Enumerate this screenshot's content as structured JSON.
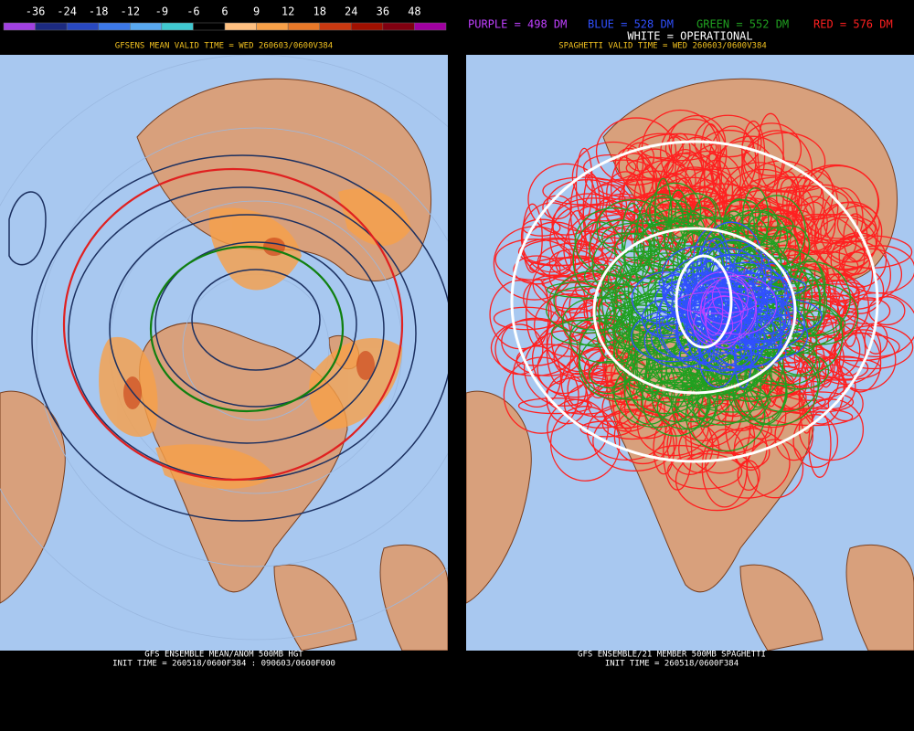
{
  "colorbar": {
    "labels": [
      "-36",
      "-24",
      "-18",
      "-12",
      "-9",
      "-6",
      "6",
      "9",
      "12",
      "18",
      "24",
      "36",
      "48"
    ],
    "colors": [
      "#a040e0",
      "#1c2a80",
      "#2848c0",
      "#3c78e8",
      "#58a8f0",
      "#40c8d0",
      "#000000",
      "#ffc080",
      "#f8a048",
      "#e87828",
      "#c83810",
      "#a01000",
      "#800010",
      "#a000a0"
    ]
  },
  "left_panel": {
    "header": "GFSENS MEAN VALID TIME = WED 260603/0600V384",
    "footer": [
      "GFS ENSEMBLE MEAN/ANOM 500MB HGT",
      "INIT TIME = 260518/0600F384 : 090603/0600F000"
    ]
  },
  "right_panel": {
    "legend": [
      {
        "text": "PURPLE = 498 DM",
        "color": "#c040ff"
      },
      {
        "text": "BLUE = 528 DM",
        "color": "#3050ff"
      },
      {
        "text": "GREEN = 552 DM",
        "color": "#20a020"
      },
      {
        "text": "RED = 576 DM",
        "color": "#ff2020"
      }
    ],
    "operational": "WHITE = OPERATIONAL",
    "header": "SPAGHETTI VALID TIME = WED 260603/0600V384",
    "footer": [
      "GFS ENSEMBLE/21 MEMBER 500MB SPAGHETTI",
      "INIT TIME = 260518/0600F384"
    ]
  }
}
